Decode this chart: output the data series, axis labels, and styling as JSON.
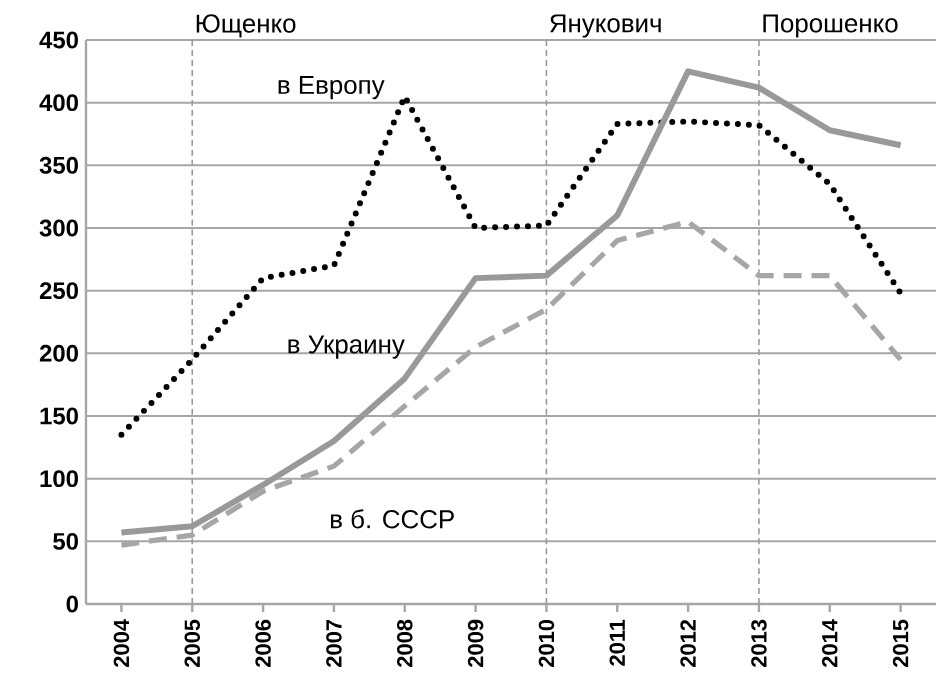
{
  "chart_data": {
    "type": "line",
    "x": [
      2004,
      2005,
      2006,
      2007,
      2008,
      2009,
      2010,
      2011,
      2012,
      2013,
      2014,
      2015
    ],
    "xlim": [
      2003.5,
      2015.5
    ],
    "xticks": [
      2004,
      2005,
      2006,
      2007,
      2008,
      2009,
      2010,
      2011,
      2012,
      2013,
      2014,
      2015
    ],
    "ylim": [
      0,
      450
    ],
    "yticks": [
      0,
      50,
      100,
      150,
      200,
      250,
      300,
      350,
      400,
      450
    ],
    "grid": "y",
    "legend": false,
    "series": [
      {
        "name": "в Европу",
        "color": "#000000",
        "line_style": "dotted",
        "values": [
          135,
          195,
          260,
          270,
          405,
          300,
          302,
          383,
          385,
          382,
          335,
          248
        ]
      },
      {
        "name": "в Украину",
        "color": "#999999",
        "line_style": "solid",
        "values": [
          57,
          62,
          95,
          130,
          180,
          260,
          262,
          310,
          425,
          412,
          378,
          366
        ]
      },
      {
        "name": "в б. СССР",
        "color": "#a6a6a6",
        "line_style": "dashed",
        "values": [
          47,
          55,
          90,
          110,
          158,
          205,
          235,
          290,
          305,
          262,
          262,
          195
        ]
      }
    ],
    "ref_lines": [
      {
        "axis": "x",
        "value": 2005,
        "label": "Ющенко",
        "color": "#999999",
        "line_style": "dashed"
      },
      {
        "axis": "x",
        "value": 2010,
        "label": "Янукович",
        "color": "#999999",
        "line_style": "dashed"
      },
      {
        "axis": "x",
        "value": 2013,
        "label": "Порошенко",
        "color": "#999999",
        "line_style": "dashed"
      }
    ]
  }
}
